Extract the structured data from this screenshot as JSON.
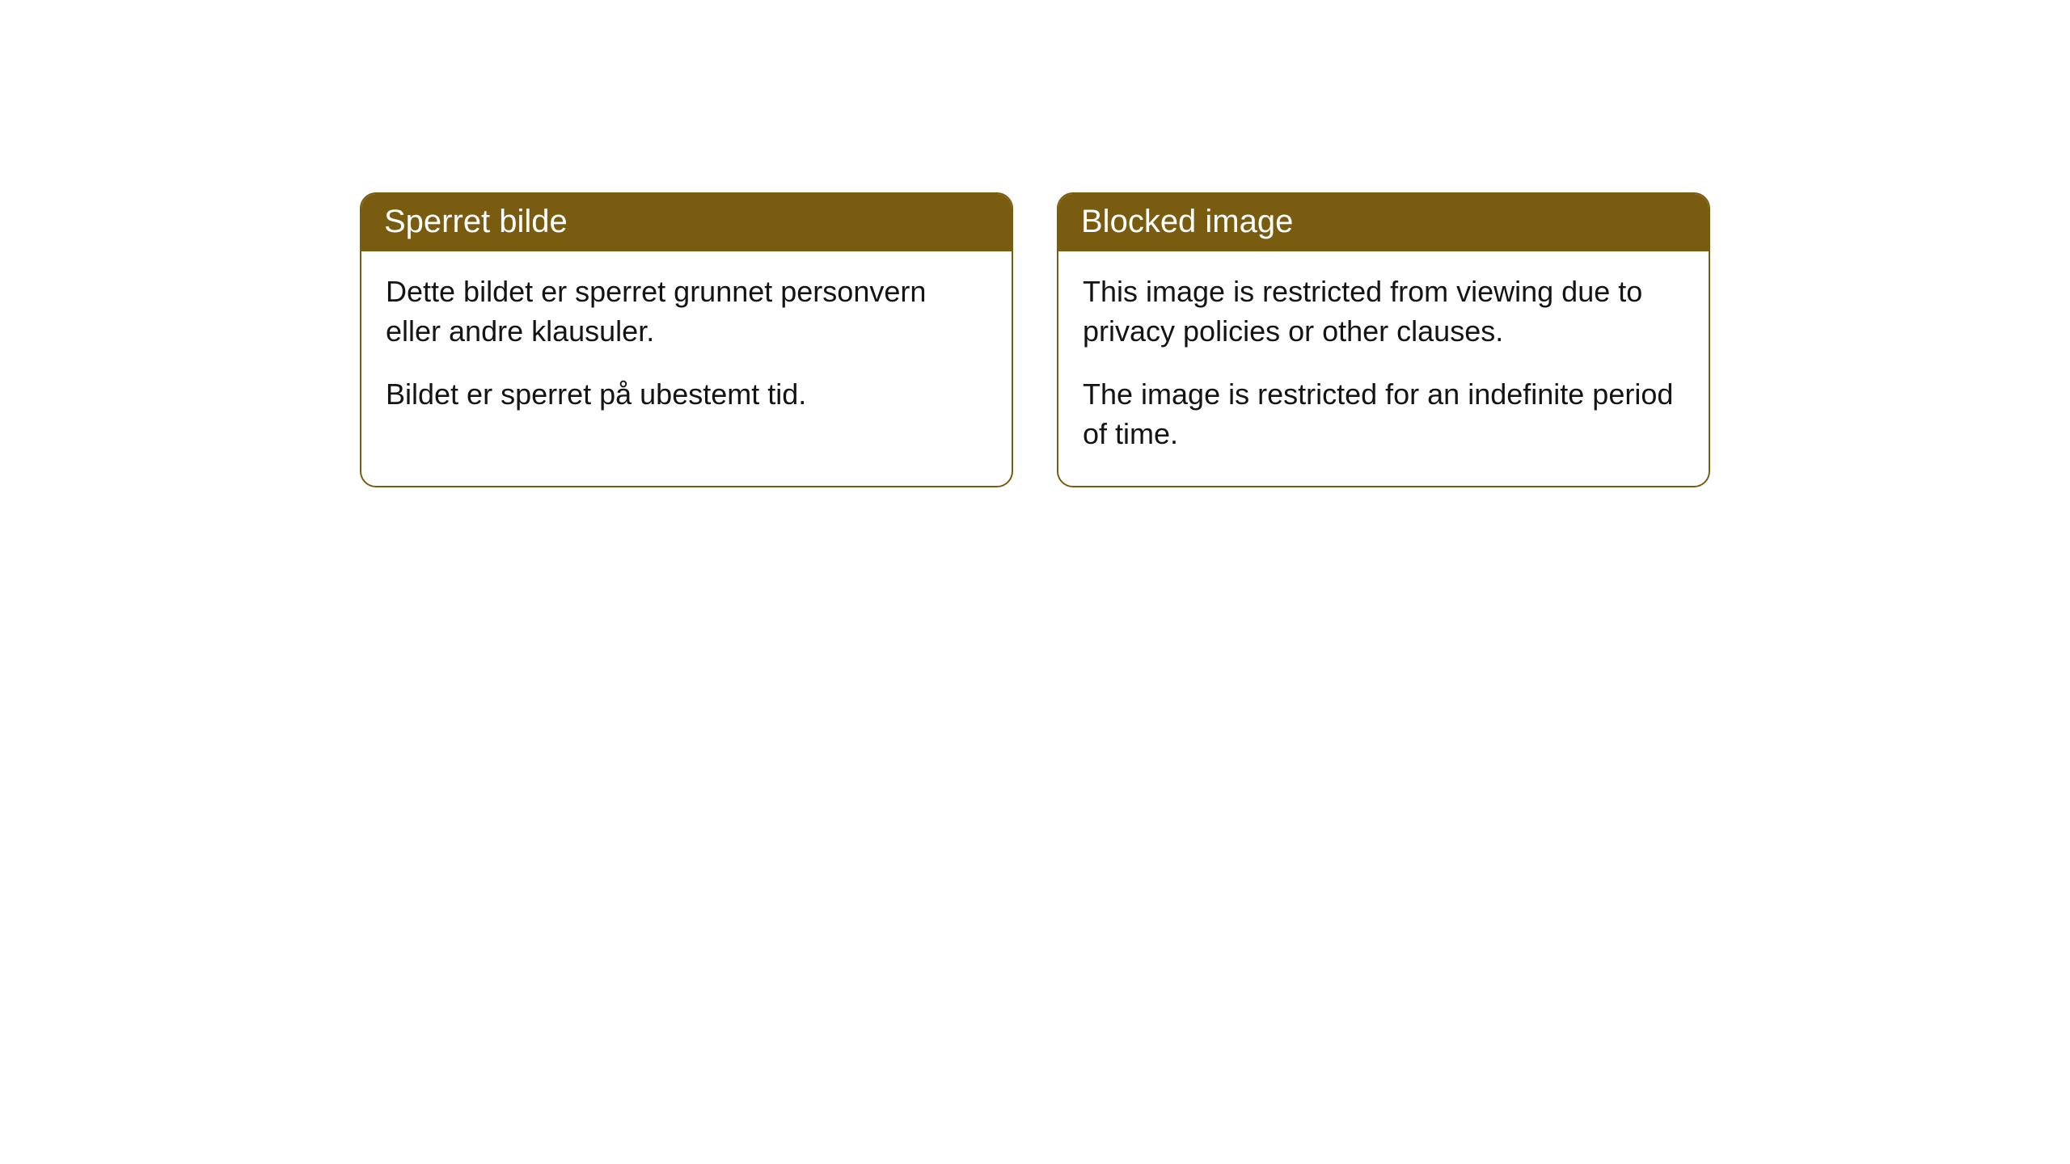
{
  "cards": [
    {
      "header": "Sperret bilde",
      "paragraph1": "Dette bildet er sperret grunnet personvern eller andre klausuler.",
      "paragraph2": "Bildet er sperret på ubestemt tid."
    },
    {
      "header": "Blocked image",
      "paragraph1": "This image is restricted from viewing due to privacy policies or other clauses.",
      "paragraph2": "The image is restricted for an indefinite period of time."
    }
  ],
  "style": {
    "header_bg_color": "#7a5c11",
    "header_text_color": "#ffffff",
    "border_color": "#7a5c11",
    "body_bg_color": "#ffffff",
    "body_text_color": "#141414",
    "header_fontsize": 40,
    "body_fontsize": 36,
    "border_radius": 20
  }
}
